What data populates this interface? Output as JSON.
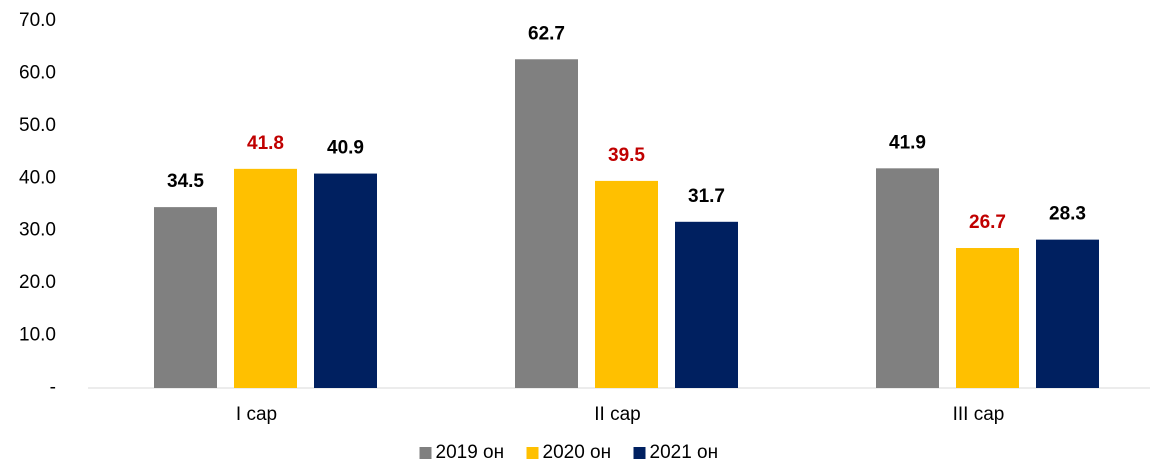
{
  "chart_data": {
    "type": "bar",
    "categories": [
      "I cap",
      "II cap",
      "III cap"
    ],
    "series": [
      {
        "name": "2019 он",
        "color": "#808080",
        "label_color": "#000000",
        "values": [
          34.5,
          62.7,
          41.9
        ]
      },
      {
        "name": "2020 он",
        "color": "#FFC000",
        "label_color": "#C00000",
        "values": [
          41.8,
          39.5,
          26.7
        ]
      },
      {
        "name": "2021 он",
        "color": "#002060",
        "label_color": "#000000",
        "values": [
          40.9,
          31.7,
          28.3
        ]
      }
    ],
    "ylim": [
      0,
      70
    ],
    "yticks": [
      {
        "value": 0,
        "label": "-"
      },
      {
        "value": 10,
        "label": "10.0"
      },
      {
        "value": 20,
        "label": "20.0"
      },
      {
        "value": 30,
        "label": "30.0"
      },
      {
        "value": 40,
        "label": "40.0"
      },
      {
        "value": 50,
        "label": "50.0"
      },
      {
        "value": 60,
        "label": "60.0"
      },
      {
        "value": 70,
        "label": "70.0"
      }
    ],
    "grid": false,
    "legend": "bottom"
  }
}
